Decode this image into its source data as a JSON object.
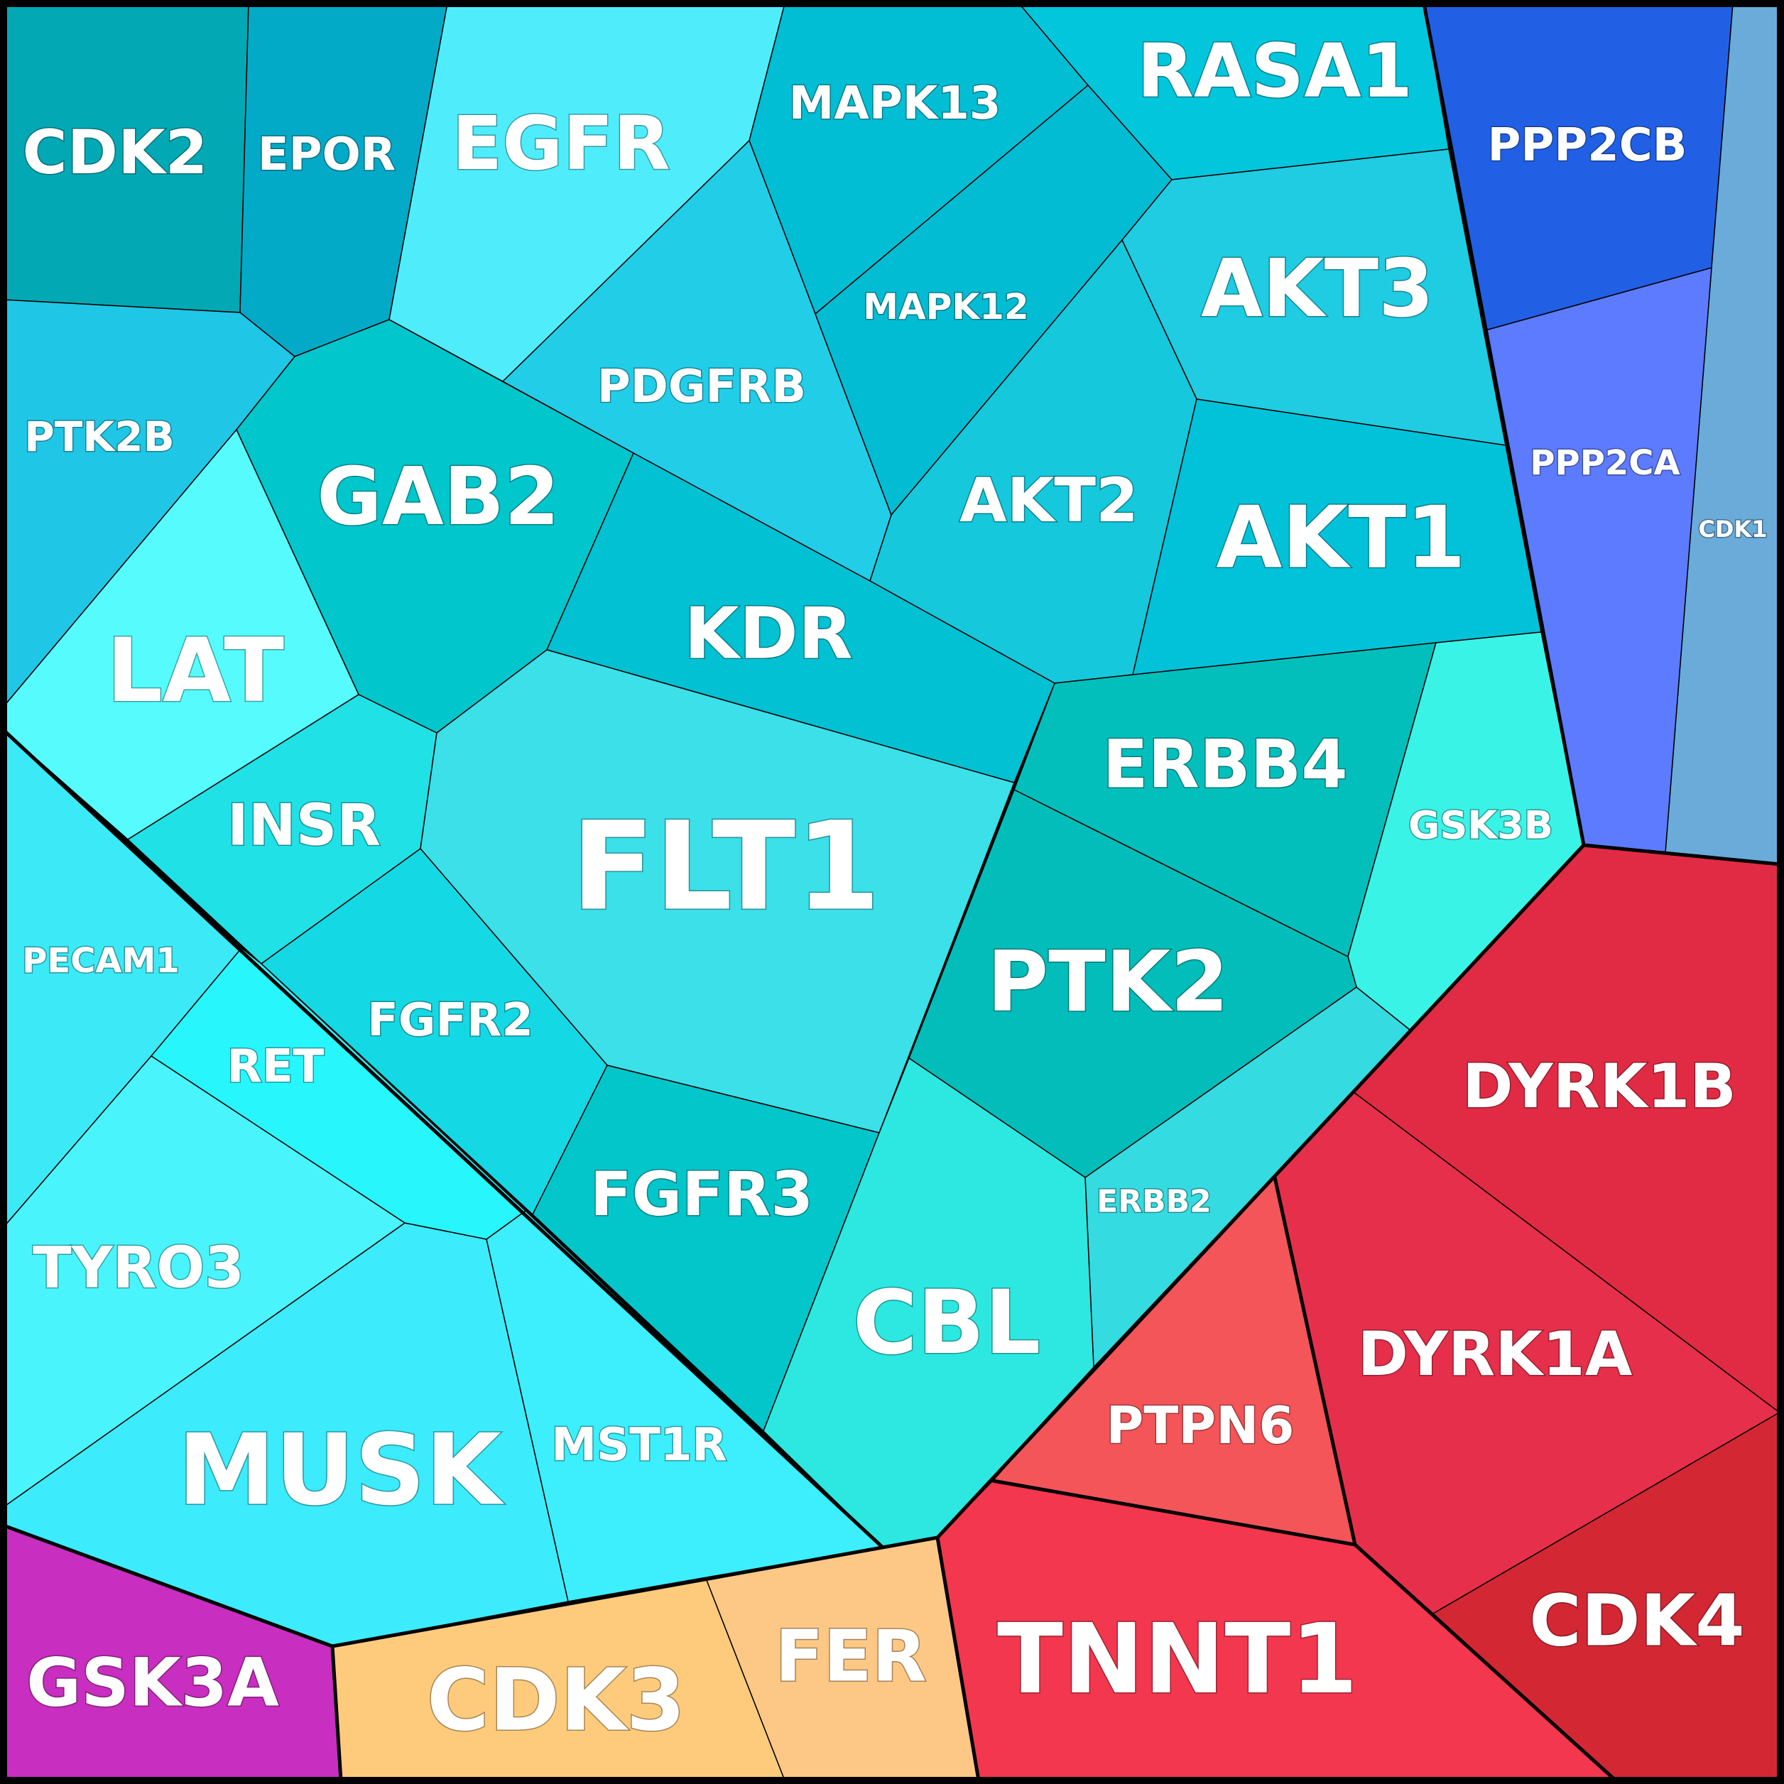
{
  "diagram": {
    "type": "voronoi-treemap",
    "colors": {
      "border": "#000000",
      "label": "#ffffff"
    },
    "cells": [
      {
        "id": "CDK2",
        "label": "CDK2",
        "color": "#02A9B4"
      },
      {
        "id": "EPOR",
        "label": "EPOR",
        "color": "#03AAC7"
      },
      {
        "id": "EGFR",
        "label": "EGFR",
        "color": "#4FEDFC"
      },
      {
        "id": "MAPK13",
        "label": "MAPK13",
        "color": "#01BED4"
      },
      {
        "id": "RASA1",
        "label": "RASA1",
        "color": "#02C6DC"
      },
      {
        "id": "PPP2CB",
        "label": "PPP2CB",
        "color": "#2160E4"
      },
      {
        "id": "CDK1",
        "label": "CDK1",
        "color": "#6AABD9"
      },
      {
        "id": "PTK2B",
        "label": "PTK2B",
        "color": "#20C6E5"
      },
      {
        "id": "PDGFRB",
        "label": "PDGFRB",
        "color": "#22CDE8"
      },
      {
        "id": "MAPK12",
        "label": "MAPK12",
        "color": "#02BCD3"
      },
      {
        "id": "AKT3",
        "label": "AKT3",
        "color": "#1FCCE2"
      },
      {
        "id": "PPP2CA",
        "label": "PPP2CA",
        "color": "#5C7BFF"
      },
      {
        "id": "GAB2",
        "label": "GAB2",
        "color": "#01C6CC"
      },
      {
        "id": "AKT2",
        "label": "AKT2",
        "color": "#15C8DC"
      },
      {
        "id": "AKT1",
        "label": "AKT1",
        "color": "#02C2D9"
      },
      {
        "id": "LAT",
        "label": "LAT",
        "color": "#56FCFD"
      },
      {
        "id": "KDR",
        "label": "KDR",
        "color": "#01C1D3"
      },
      {
        "id": "ERBB4",
        "label": "ERBB4",
        "color": "#02BFBC"
      },
      {
        "id": "GSK3B",
        "label": "GSK3B",
        "color": "#3AF3E7"
      },
      {
        "id": "INSR",
        "label": "INSR",
        "color": "#20E1E5"
      },
      {
        "id": "FLT1",
        "label": "FLT1",
        "color": "#3BE0E9"
      },
      {
        "id": "PTK2",
        "label": "PTK2",
        "color": "#02BDB9"
      },
      {
        "id": "PECAM1",
        "label": "PECAM1",
        "color": "#3BEAF6"
      },
      {
        "id": "FGFR2",
        "label": "FGFR2",
        "color": "#14D9E5"
      },
      {
        "id": "RET",
        "label": "RET",
        "color": "#27F6FD"
      },
      {
        "id": "DYRK1B",
        "label": "DYRK1B",
        "color": "#E12B44"
      },
      {
        "id": "ERBB2",
        "label": "ERBB2",
        "color": "#34DBE1"
      },
      {
        "id": "FGFR3",
        "label": "FGFR3",
        "color": "#02C6CA"
      },
      {
        "id": "TYRO3",
        "label": "TYRO3",
        "color": "#4AF4FC"
      },
      {
        "id": "CBL",
        "label": "CBL",
        "color": "#2CE8E1"
      },
      {
        "id": "DYRK1A",
        "label": "DYRK1A",
        "color": "#E62F4A"
      },
      {
        "id": "PTPN6",
        "label": "PTPN6",
        "color": "#F45559"
      },
      {
        "id": "MUSK",
        "label": "MUSK",
        "color": "#3CEBFC"
      },
      {
        "id": "MST1R",
        "label": "MST1R",
        "color": "#3DEEFD"
      },
      {
        "id": "CDK4",
        "label": "CDK4",
        "color": "#D32734"
      },
      {
        "id": "GSK3A",
        "label": "GSK3A",
        "color": "#C82EBF"
      },
      {
        "id": "CDK3",
        "label": "CDK3",
        "color": "#FECB7D"
      },
      {
        "id": "FER",
        "label": "FER",
        "color": "#FDC885"
      },
      {
        "id": "TNNT1",
        "label": "TNNT1",
        "color": "#F3374E"
      }
    ]
  }
}
